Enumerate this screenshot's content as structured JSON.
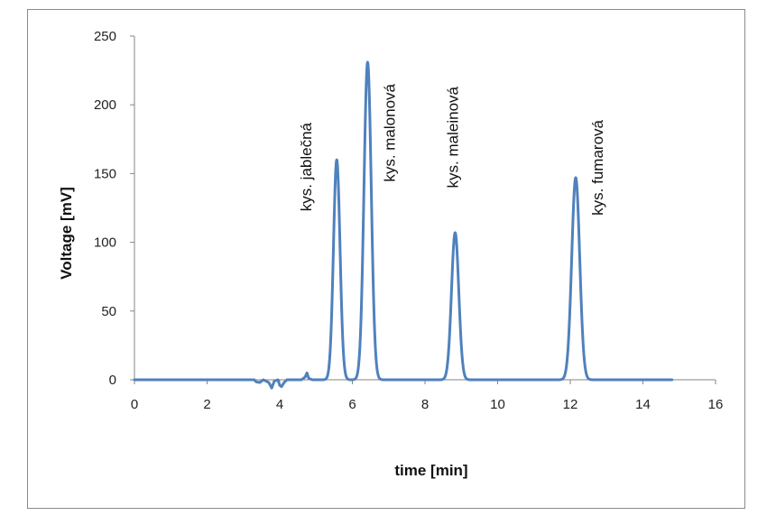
{
  "chart_data": {
    "type": "line",
    "xlabel": "time [min]",
    "ylabel": "Voltage [mV]",
    "xlim": [
      0,
      16
    ],
    "ylim": [
      0,
      250
    ],
    "xticks": [
      "0",
      "2",
      "4",
      "6",
      "8",
      "10",
      "12",
      "14",
      "16"
    ],
    "yticks": [
      "0",
      "50",
      "100",
      "150",
      "200",
      "250"
    ],
    "grid": false,
    "legend": "none",
    "line_color": "#4f81bd",
    "series": [
      {
        "x": [
          0,
          3.3,
          3.35,
          3.45,
          3.55,
          3.7,
          3.78,
          3.85,
          3.95,
          4.0,
          4.05,
          4.12,
          4.2,
          4.3,
          4.6,
          4.7,
          4.75,
          4.8,
          4.9,
          14.8
        ],
        "y": [
          0,
          0,
          -1.5,
          -2,
          0,
          -2,
          -6,
          -1,
          0,
          -4,
          -5,
          -2,
          0,
          0,
          0,
          2,
          5,
          1,
          0,
          0
        ]
      }
    ],
    "peaks": [
      {
        "label": "kys. jablečná",
        "x": 5.57,
        "y": 160,
        "width": 0.09
      },
      {
        "label": "kys. malonová",
        "x": 6.42,
        "y": 231,
        "width": 0.1
      },
      {
        "label": "kys. maleinová",
        "x": 8.83,
        "y": 107,
        "width": 0.1
      },
      {
        "label": "kys. fumarová",
        "x": 12.15,
        "y": 147,
        "width": 0.11
      }
    ]
  }
}
